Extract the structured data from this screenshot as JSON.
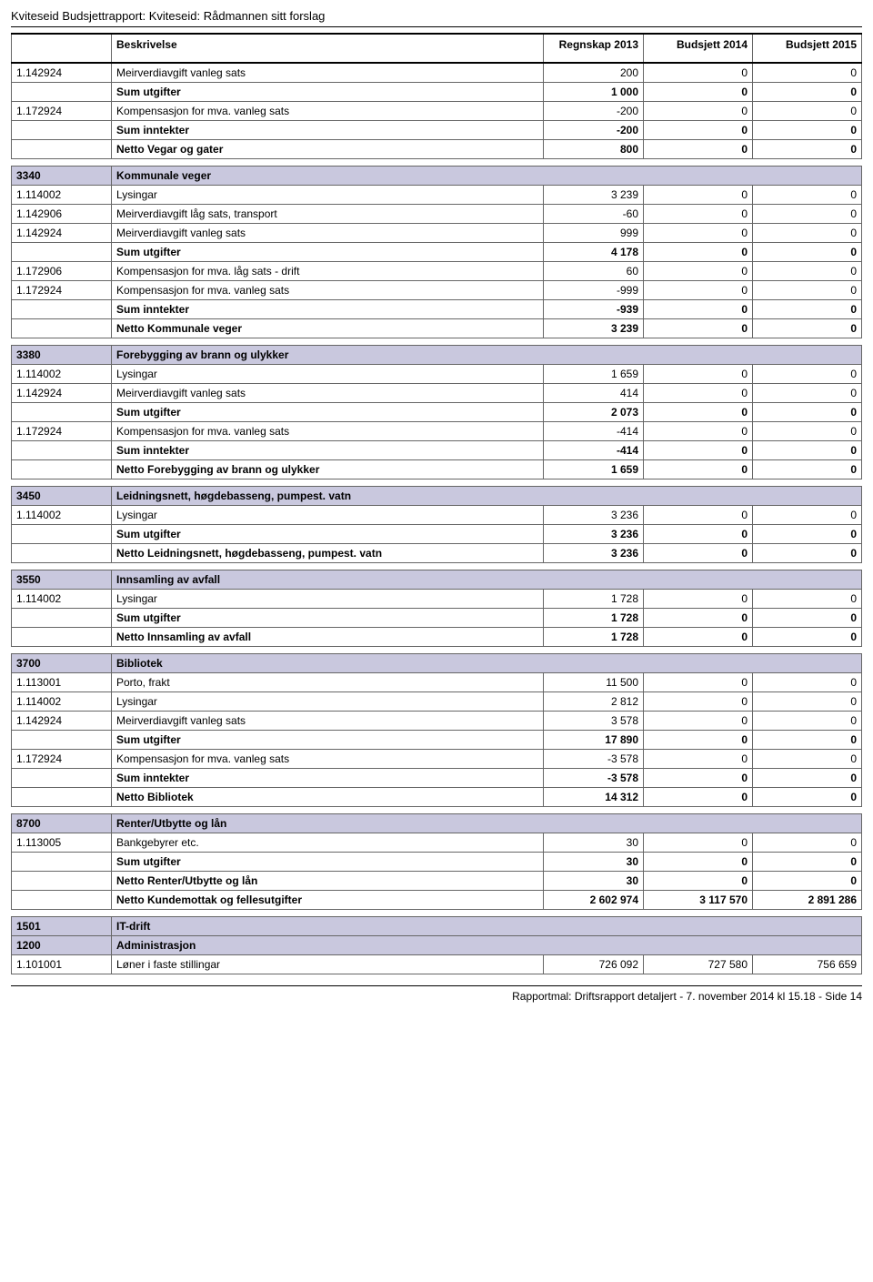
{
  "report_title": "Kviteseid Budsjettrapport: Kviteseid: Rådmannen sitt forslag",
  "footer": "Rapportmal: Driftsrapport detaljert - 7. november 2014 kl 15.18 - Side 14",
  "headers": {
    "desc": "Beskrivelse",
    "c1": "Regnskap 2013",
    "c2": "Budsjett 2014",
    "c3": "Budsjett 2015"
  },
  "colors": {
    "section_bg": "#c9c8de",
    "border": "#666666",
    "rule": "#000000"
  },
  "rows": [
    {
      "type": "data",
      "code": "1.142924",
      "desc": "Meirverdiavgift vanleg sats",
      "v1": "200",
      "v2": "0",
      "v3": "0"
    },
    {
      "type": "bold",
      "code": "",
      "desc": "Sum utgifter",
      "v1": "1 000",
      "v2": "0",
      "v3": "0"
    },
    {
      "type": "data",
      "code": "1.172924",
      "desc": "Kompensasjon for mva. vanleg sats",
      "v1": "-200",
      "v2": "0",
      "v3": "0"
    },
    {
      "type": "bold",
      "code": "",
      "desc": "Sum inntekter",
      "v1": "-200",
      "v2": "0",
      "v3": "0"
    },
    {
      "type": "bold",
      "code": "",
      "desc": "Netto Vegar og gater",
      "v1": "800",
      "v2": "0",
      "v3": "0"
    },
    {
      "type": "spacer"
    },
    {
      "type": "section",
      "code": "3340",
      "desc": "Kommunale veger"
    },
    {
      "type": "data",
      "code": "1.114002",
      "desc": "Lysingar",
      "v1": "3 239",
      "v2": "0",
      "v3": "0"
    },
    {
      "type": "data",
      "code": "1.142906",
      "desc": "Meirverdiavgift låg sats, transport",
      "v1": "-60",
      "v2": "0",
      "v3": "0"
    },
    {
      "type": "data",
      "code": "1.142924",
      "desc": "Meirverdiavgift vanleg sats",
      "v1": "999",
      "v2": "0",
      "v3": "0"
    },
    {
      "type": "bold",
      "code": "",
      "desc": "Sum utgifter",
      "v1": "4 178",
      "v2": "0",
      "v3": "0"
    },
    {
      "type": "data",
      "code": "1.172906",
      "desc": "Kompensasjon for mva. låg sats - drift",
      "v1": "60",
      "v2": "0",
      "v3": "0"
    },
    {
      "type": "data",
      "code": "1.172924",
      "desc": "Kompensasjon for mva. vanleg sats",
      "v1": "-999",
      "v2": "0",
      "v3": "0"
    },
    {
      "type": "bold",
      "code": "",
      "desc": "Sum inntekter",
      "v1": "-939",
      "v2": "0",
      "v3": "0"
    },
    {
      "type": "bold",
      "code": "",
      "desc": "Netto Kommunale veger",
      "v1": "3 239",
      "v2": "0",
      "v3": "0"
    },
    {
      "type": "spacer"
    },
    {
      "type": "section",
      "code": "3380",
      "desc": "Forebygging av brann og ulykker"
    },
    {
      "type": "data",
      "code": "1.114002",
      "desc": "Lysingar",
      "v1": "1 659",
      "v2": "0",
      "v3": "0"
    },
    {
      "type": "data",
      "code": "1.142924",
      "desc": "Meirverdiavgift vanleg sats",
      "v1": "414",
      "v2": "0",
      "v3": "0"
    },
    {
      "type": "bold",
      "code": "",
      "desc": "Sum utgifter",
      "v1": "2 073",
      "v2": "0",
      "v3": "0"
    },
    {
      "type": "data",
      "code": "1.172924",
      "desc": "Kompensasjon for mva. vanleg sats",
      "v1": "-414",
      "v2": "0",
      "v3": "0"
    },
    {
      "type": "bold",
      "code": "",
      "desc": "Sum inntekter",
      "v1": "-414",
      "v2": "0",
      "v3": "0"
    },
    {
      "type": "bold",
      "code": "",
      "desc": "Netto Forebygging av brann og ulykker",
      "v1": "1 659",
      "v2": "0",
      "v3": "0"
    },
    {
      "type": "spacer"
    },
    {
      "type": "section",
      "code": "3450",
      "desc": "Leidningsnett, høgdebasseng, pumpest. vatn"
    },
    {
      "type": "data",
      "code": "1.114002",
      "desc": "Lysingar",
      "v1": "3 236",
      "v2": "0",
      "v3": "0"
    },
    {
      "type": "bold",
      "code": "",
      "desc": "Sum utgifter",
      "v1": "3 236",
      "v2": "0",
      "v3": "0"
    },
    {
      "type": "bold",
      "code": "",
      "desc": "Netto Leidningsnett, høgdebasseng, pumpest. vatn",
      "v1": "3 236",
      "v2": "0",
      "v3": "0"
    },
    {
      "type": "spacer"
    },
    {
      "type": "section",
      "code": "3550",
      "desc": "Innsamling av avfall"
    },
    {
      "type": "data",
      "code": "1.114002",
      "desc": "Lysingar",
      "v1": "1 728",
      "v2": "0",
      "v3": "0"
    },
    {
      "type": "bold",
      "code": "",
      "desc": "Sum utgifter",
      "v1": "1 728",
      "v2": "0",
      "v3": "0"
    },
    {
      "type": "bold",
      "code": "",
      "desc": "Netto Innsamling av avfall",
      "v1": "1 728",
      "v2": "0",
      "v3": "0"
    },
    {
      "type": "spacer"
    },
    {
      "type": "section",
      "code": "3700",
      "desc": "Bibliotek"
    },
    {
      "type": "data",
      "code": "1.113001",
      "desc": "Porto, frakt",
      "v1": "11 500",
      "v2": "0",
      "v3": "0"
    },
    {
      "type": "data",
      "code": "1.114002",
      "desc": "Lysingar",
      "v1": "2 812",
      "v2": "0",
      "v3": "0"
    },
    {
      "type": "data",
      "code": "1.142924",
      "desc": "Meirverdiavgift vanleg sats",
      "v1": "3 578",
      "v2": "0",
      "v3": "0"
    },
    {
      "type": "bold",
      "code": "",
      "desc": "Sum utgifter",
      "v1": "17 890",
      "v2": "0",
      "v3": "0"
    },
    {
      "type": "data",
      "code": "1.172924",
      "desc": "Kompensasjon for mva. vanleg sats",
      "v1": "-3 578",
      "v2": "0",
      "v3": "0"
    },
    {
      "type": "bold",
      "code": "",
      "desc": "Sum inntekter",
      "v1": "-3 578",
      "v2": "0",
      "v3": "0"
    },
    {
      "type": "bold",
      "code": "",
      "desc": "Netto Bibliotek",
      "v1": "14 312",
      "v2": "0",
      "v3": "0"
    },
    {
      "type": "spacer"
    },
    {
      "type": "section",
      "code": "8700",
      "desc": "Renter/Utbytte og lån"
    },
    {
      "type": "data",
      "code": "1.113005",
      "desc": "Bankgebyrer etc.",
      "v1": "30",
      "v2": "0",
      "v3": "0"
    },
    {
      "type": "bold",
      "code": "",
      "desc": "Sum utgifter",
      "v1": "30",
      "v2": "0",
      "v3": "0"
    },
    {
      "type": "bold",
      "code": "",
      "desc": "Netto Renter/Utbytte og lån",
      "v1": "30",
      "v2": "0",
      "v3": "0"
    },
    {
      "type": "bold",
      "code": "",
      "desc": "Netto Kundemottak og fellesutgifter",
      "v1": "2 602 974",
      "v2": "3 117 570",
      "v3": "2 891 286"
    },
    {
      "type": "spacer"
    },
    {
      "type": "section",
      "code": "1501",
      "desc": "IT-drift"
    },
    {
      "type": "section",
      "code": "1200",
      "desc": "Administrasjon"
    },
    {
      "type": "data",
      "code": "1.101001",
      "desc": "Løner i faste stillingar",
      "v1": "726 092",
      "v2": "727 580",
      "v3": "756 659"
    }
  ]
}
